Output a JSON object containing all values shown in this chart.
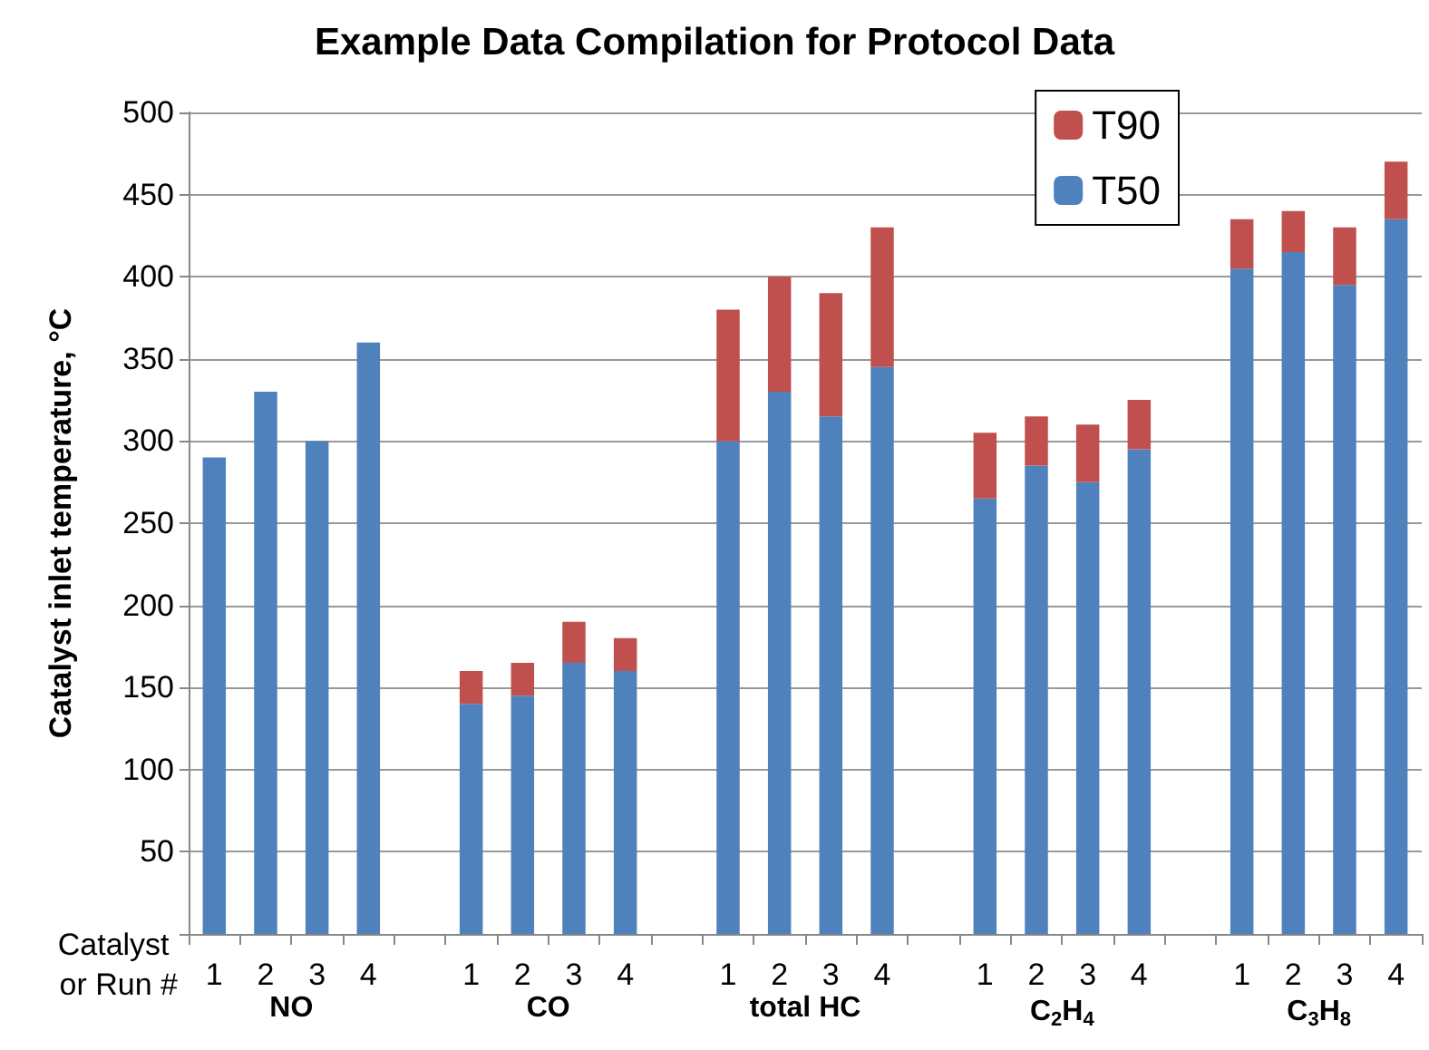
{
  "chart_data": {
    "type": "bar",
    "title": "Example Data Compilation for Protocol Data",
    "ylabel": "Catalyst inlet temperature, °C",
    "xlabel": "Catalyst or Run #",
    "categories": [
      "1",
      "2",
      "3",
      "4",
      null,
      "1",
      "2",
      "3",
      "4",
      null,
      "1",
      "2",
      "3",
      "4",
      null,
      "1",
      "2",
      "3",
      "4",
      null,
      "1",
      "2",
      "3",
      "4"
    ],
    "series": [
      {
        "name": "T50",
        "color": "#4f81bd",
        "values": [
          290,
          330,
          300,
          360,
          null,
          140,
          145,
          165,
          160,
          null,
          300,
          330,
          315,
          345,
          null,
          265,
          285,
          275,
          295,
          null,
          405,
          415,
          395,
          435
        ]
      },
      {
        "name": "T90",
        "color": "#c0504d",
        "values": [
          null,
          null,
          null,
          null,
          null,
          20,
          20,
          25,
          20,
          null,
          80,
          70,
          75,
          85,
          null,
          40,
          30,
          35,
          30,
          null,
          30,
          25,
          35,
          35
        ]
      }
    ],
    "stacked": true,
    "annotations": [
      "NO",
      "CO",
      "total HC",
      "C$_{2}$H$_{4}$",
      "C$_{3}$H$_{8}$"
    ],
    "ylim": [
      0,
      500
    ],
    "yticks": [
      {
        "value": 0,
        "label": null
      },
      50,
      100,
      150,
      200,
      250,
      300,
      350,
      400,
      450,
      500
    ],
    "grid": "y",
    "legend": "top right"
  }
}
